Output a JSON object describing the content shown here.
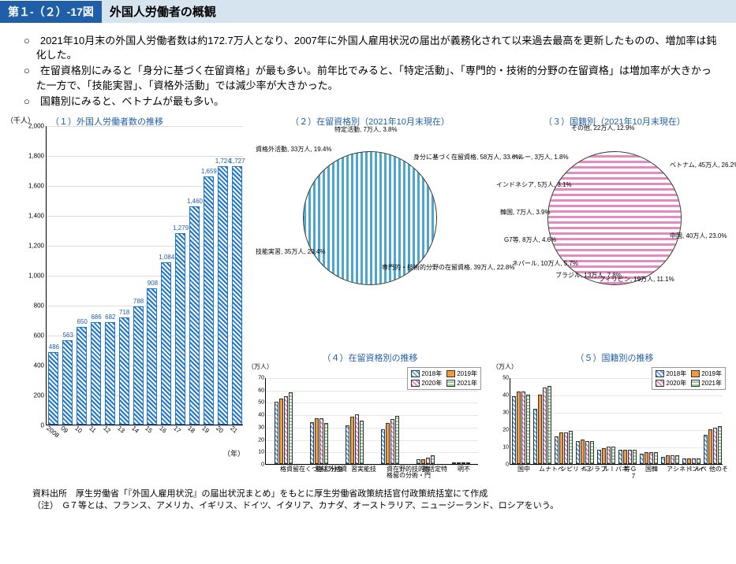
{
  "header": {
    "tag": "第１-（２）-17図",
    "title": "外国人労働者の概観"
  },
  "bullets": [
    "○　2021年10月末の外国人労働者数は約172.7万人となり、2007年に外国人雇用状況の届出が義務化されて以来過去最高を更新したものの、増加率は鈍化した。",
    "○　在留資格別にみると「身分に基づく在留資格」が最も多い。前年比でみると、「特定活動」、「専門的・技術的分野の在留資格」は増加率が大きかった一方で、「技能実習」、「資格外活動」では減少率が大きかった。",
    "○　国籍別にみると、ベトナムが最も多い。"
  ],
  "chart1": {
    "title": "（１）外国人労働者数の推移",
    "y_unit": "（千人）",
    "x_unit": "（年）",
    "type": "bar",
    "ylim": [
      0,
      2000
    ],
    "ytick_step": 200,
    "years": [
      "2008",
      "09",
      "10",
      "11",
      "12",
      "13",
      "14",
      "15",
      "16",
      "17",
      "18",
      "19",
      "20",
      "21"
    ],
    "values": [
      486,
      563,
      650,
      686,
      682,
      718,
      788,
      908,
      1084,
      1279,
      1460,
      1659,
      1724,
      1727
    ],
    "bar_color_pattern": "diag-blue",
    "bar_border": "#1f77d4",
    "background": "#ffffff"
  },
  "chart2": {
    "title": "（２）在留資格別（2021年10月末現在）",
    "type": "pie",
    "slices": [
      {
        "label": "身分に基づく在留資格, 58万人, 33.6%",
        "value": 33.6,
        "color": "#5aa5e6",
        "pattern": "diag"
      },
      {
        "label": "専門的・技術的分野の在留資格, 39万人, 22.8%",
        "value": 22.8,
        "color": "#f29b3e",
        "pattern": "solid"
      },
      {
        "label": "技能実習, 35万人, 20.4%",
        "value": 20.4,
        "color": "#e38bc0",
        "pattern": "cross"
      },
      {
        "label": "資格外活動, 33万人, 19.4%",
        "value": 19.4,
        "color": "#8fd08f",
        "pattern": "grid"
      },
      {
        "label": "特定活動, 7万人, 3.8%",
        "value": 3.8,
        "color": "#4aa7d0",
        "pattern": "vert"
      }
    ]
  },
  "chart3": {
    "title": "（３）国籍別（2021年10月末現在）",
    "type": "pie",
    "slices": [
      {
        "label": "ベトナム, 45万人, 26.2%",
        "value": 26.2,
        "color": "#5aa5e6",
        "pattern": "diag"
      },
      {
        "label": "中国, 40万人, 23.0%",
        "value": 23.0,
        "color": "#f29b3e",
        "pattern": "solid"
      },
      {
        "label": "フィリピン, 19万人, 11.1%",
        "value": 11.1,
        "color": "#7fc97f",
        "pattern": "vert"
      },
      {
        "label": "ブラジル, 13万人, 7.8%",
        "value": 7.8,
        "color": "#b8b84a",
        "pattern": "hex"
      },
      {
        "label": "ネパール, 10万人, 5.7%",
        "value": 5.7,
        "color": "#6aa0d8",
        "pattern": "solid"
      },
      {
        "label": "G7等, 8万人, 4.6%",
        "value": 4.6,
        "color": "#6ec96e",
        "pattern": "hstripe"
      },
      {
        "label": "韓国, 7万人, 3.9%",
        "value": 3.9,
        "color": "#e07b2e",
        "pattern": "dots"
      },
      {
        "label": "インドネシア, 5万人, 3.1%",
        "value": 3.1,
        "color": "#5aa5e6",
        "pattern": "diag2"
      },
      {
        "label": "ペルー, 3万人, 1.8%",
        "value": 1.8,
        "color": "#d8d85a",
        "pattern": "solid"
      },
      {
        "label": "その他, 22万人, 12.9%",
        "value": 12.9,
        "color": "#e38bc0",
        "pattern": "brick"
      }
    ]
  },
  "chart4": {
    "title": "（４）在留資格別の推移",
    "type": "grouped-bar",
    "y_unit": "（万人）",
    "ylim": [
      0,
      70
    ],
    "ytick_step": 10,
    "series": [
      "2018年",
      "2019年",
      "2020年",
      "2021年"
    ],
    "series_colors": [
      "#5aa5e6",
      "#f29b3e",
      "#e38bc0",
      "#8fd08f"
    ],
    "categories": [
      "身分に基づく在留資格",
      "資格外活動",
      "技能実習",
      "専門的・技術的分野の在留資格",
      "特定活動",
      "不明"
    ],
    "values": [
      [
        50,
        53,
        55,
        58
      ],
      [
        34,
        37,
        37,
        33
      ],
      [
        31,
        38,
        40,
        35
      ],
      [
        28,
        33,
        36,
        39
      ],
      [
        4,
        4,
        5,
        7
      ],
      [
        1,
        1,
        1,
        1
      ]
    ]
  },
  "chart5": {
    "title": "（５）国籍別の推移",
    "type": "grouped-bar",
    "y_unit": "（万人）",
    "ylim": [
      0,
      50
    ],
    "ytick_step": 10,
    "series": [
      "2018年",
      "2019年",
      "2020年",
      "2021年"
    ],
    "series_colors": [
      "#5aa5e6",
      "#f29b3e",
      "#e38bc0",
      "#8fd08f"
    ],
    "categories": [
      "中国",
      "ベトナム",
      "フィリピン",
      "ブラジル",
      "ネパール",
      "G7等",
      "韓国",
      "インドネシア",
      "ペルー",
      "その他"
    ],
    "values": [
      [
        39,
        42,
        42,
        40
      ],
      [
        32,
        40,
        44,
        45
      ],
      [
        16,
        18,
        18,
        19
      ],
      [
        13,
        14,
        13,
        13
      ],
      [
        8,
        9,
        10,
        10
      ],
      [
        8,
        8,
        8,
        8
      ],
      [
        6,
        7,
        7,
        7
      ],
      [
        4,
        5,
        5,
        5
      ],
      [
        3,
        3,
        3,
        3
      ],
      [
        17,
        20,
        21,
        22
      ]
    ]
  },
  "footer": {
    "line1": "資料出所　厚生労働省「『外国人雇用状況』の届出状況まとめ」をもとに厚生労働省政策統括官付政策統括室にて作成",
    "line2": "（注）　G７等とは、フランス、アメリカ、イギリス、ドイツ、イタリア、カナダ、オーストラリア、ニュージーランド、ロシアをいう。"
  },
  "common": {
    "accent": "#1f5fa8",
    "patterns": {
      "c2018": "repeating-linear-gradient(45deg,#5aa5e6 0 2px,#fff 2px 4px)",
      "c2019": "#f29b3e",
      "c2020": "repeating-linear-gradient(45deg,#e38bc0 0 2px,#fff 2px 4px)",
      "c2021": "repeating-linear-gradient(0deg,#8fd08f 0 2px,#fff 2px 4px)"
    }
  }
}
